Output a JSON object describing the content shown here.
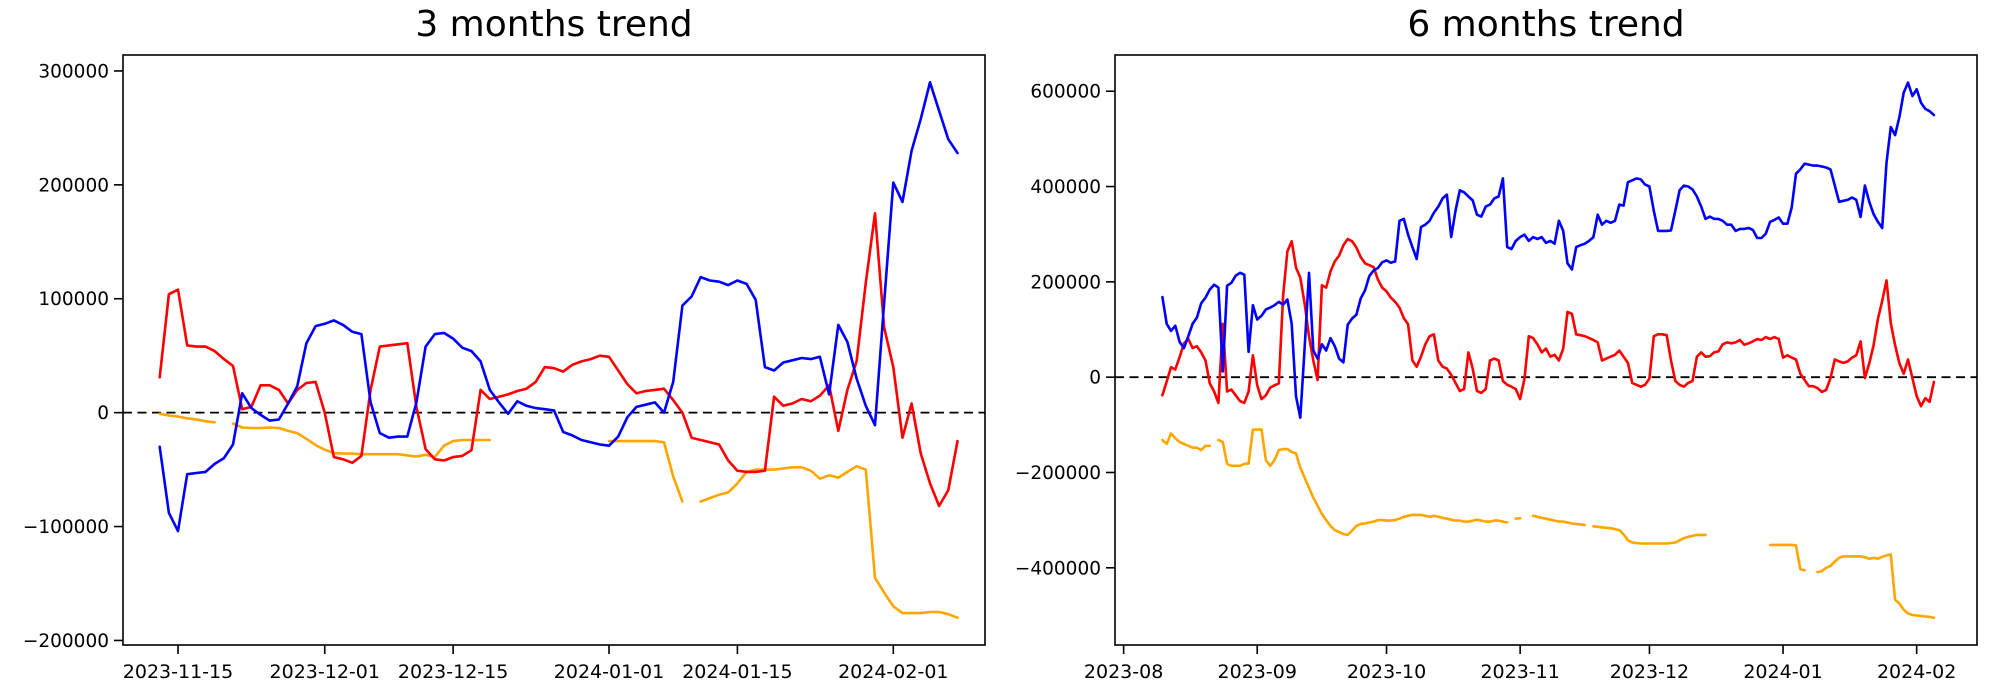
{
  "chart_data": [
    {
      "type": "line",
      "title": "3 months trend",
      "xlabel": "",
      "ylabel": "",
      "grid": false,
      "legend": "none",
      "zero_line_dashed": true,
      "frequency": "daily",
      "start_date": "2023-11-13",
      "xlim": [
        "2023-11-09",
        "2024-02-11"
      ],
      "ylim": [
        -204000,
        314000
      ],
      "yticks": [
        -200000,
        -100000,
        0,
        100000,
        200000,
        300000
      ],
      "xticks": [
        {
          "date": "2023-11-15",
          "label": "2023-11-15"
        },
        {
          "date": "2023-12-01",
          "label": "2023-12-01"
        },
        {
          "date": "2023-12-15",
          "label": "2023-12-15"
        },
        {
          "date": "2024-01-01",
          "label": "2024-01-01"
        },
        {
          "date": "2024-01-15",
          "label": "2024-01-15"
        },
        {
          "date": "2024-02-01",
          "label": "2024-02-01"
        }
      ],
      "series": [
        {
          "name": "orange-line",
          "color": "#ffa500",
          "values": [
            -1000,
            -2500,
            -3500,
            -5000,
            -6000,
            -7500,
            -8500,
            null,
            -9500,
            -13000,
            -13500,
            -13500,
            -13000,
            -13500,
            -16000,
            -18000,
            -23000,
            -28500,
            -32500,
            -35500,
            -36000,
            -36000,
            -36500,
            -36500,
            -36500,
            -36500,
            -36500,
            -37500,
            -38500,
            -37000,
            -39000,
            -29000,
            -25000,
            -24000,
            -24000,
            -24000,
            -24000,
            null,
            null,
            null,
            null,
            null,
            null,
            null,
            null,
            null,
            null,
            null,
            null,
            -25000,
            -25000,
            -25000,
            -25000,
            -25000,
            -25000,
            -26000,
            -56000,
            -78000,
            null,
            -78000,
            -75000,
            -72000,
            -70000,
            -62000,
            -52000,
            -50000,
            -50000,
            -50000,
            -49000,
            -48000,
            -48000,
            -51000,
            -58000,
            -55000,
            -57000,
            -52000,
            -47000,
            -50000,
            -145000,
            -158000,
            -170000,
            -176000,
            -176000,
            -176000,
            -175000,
            -175000,
            -177000,
            -180000
          ]
        },
        {
          "name": "red-line",
          "color": "#ff0000",
          "values": [
            31000,
            104000,
            108000,
            59000,
            58000,
            58000,
            54000,
            47000,
            41000,
            3000,
            5000,
            24000,
            24000,
            20000,
            8000,
            20000,
            26000,
            27000,
            0,
            -39000,
            -41000,
            -44000,
            -38000,
            20000,
            58000,
            59000,
            60000,
            61000,
            5000,
            -32000,
            -41000,
            -42000,
            -39000,
            -38000,
            -33000,
            20000,
            12000,
            14000,
            16000,
            19000,
            21000,
            27000,
            40000,
            39000,
            36000,
            42000,
            45000,
            47000,
            50000,
            49000,
            37000,
            25000,
            17000,
            19000,
            20000,
            21000,
            11000,
            0,
            -22000,
            -24000,
            -26000,
            -28000,
            -42000,
            -51000,
            -52000,
            -52000,
            -51000,
            14000,
            6000,
            8000,
            12000,
            10000,
            15000,
            24000,
            -16000,
            20000,
            45000,
            114000,
            175000,
            75000,
            40000,
            -22000,
            8000,
            -36000,
            -62000,
            -82000,
            -68000,
            -25000
          ]
        },
        {
          "name": "blue-line",
          "color": "#0000ff",
          "values": [
            -30000,
            -88000,
            -104000,
            -54000,
            -53000,
            -52000,
            -45000,
            -40000,
            -28000,
            17000,
            4000,
            -2000,
            -7000,
            -6000,
            8000,
            23000,
            61000,
            76000,
            78000,
            81000,
            77000,
            71000,
            69000,
            9000,
            -18000,
            -22000,
            -21000,
            -21000,
            9000,
            58000,
            69000,
            70000,
            65000,
            57000,
            54000,
            45000,
            20000,
            9000,
            -1000,
            10000,
            6000,
            4000,
            3000,
            2000,
            -17000,
            -20000,
            -24000,
            -26000,
            -28000,
            -29000,
            -21000,
            -4000,
            5000,
            7000,
            9000,
            0,
            27000,
            94000,
            102000,
            119000,
            116000,
            115000,
            112000,
            116000,
            113000,
            99000,
            40000,
            37000,
            44000,
            46000,
            48000,
            47000,
            49000,
            16000,
            77000,
            62000,
            30000,
            6000,
            -11000,
            96000,
            202000,
            185000,
            230000,
            258000,
            290000,
            265000,
            240000,
            228000
          ]
        }
      ]
    },
    {
      "type": "line",
      "title": "6 months trend",
      "xlabel": "",
      "ylabel": "",
      "grid": false,
      "legend": "none",
      "zero_line_dashed": true,
      "frequency": "daily",
      "start_date": "2023-08-10",
      "xlim": [
        "2023-07-30",
        "2024-02-15"
      ],
      "ylim": [
        -562000,
        676000
      ],
      "yticks": [
        -400000,
        -200000,
        0,
        200000,
        400000,
        600000
      ],
      "xticks": [
        {
          "date": "2023-08-01",
          "label": "2023-08"
        },
        {
          "date": "2023-09-01",
          "label": "2023-09"
        },
        {
          "date": "2023-10-01",
          "label": "2023-10"
        },
        {
          "date": "2023-11-01",
          "label": "2023-11"
        },
        {
          "date": "2023-12-01",
          "label": "2023-12"
        },
        {
          "date": "2024-01-01",
          "label": "2024-01"
        },
        {
          "date": "2024-02-01",
          "label": "2024-02"
        }
      ],
      "series": [
        {
          "name": "orange-line",
          "color": "#ffa500",
          "values": [
            -132000,
            -140000,
            -118000,
            -128000,
            -136000,
            -140000,
            -144000,
            -148000,
            -148000,
            -153000,
            -144000,
            -144000,
            null,
            -132000,
            -136000,
            -182000,
            -186000,
            -186000,
            -186000,
            -182000,
            -181000,
            -110000,
            -110000,
            -110000,
            -174000,
            -186000,
            -174000,
            -153000,
            -151000,
            -151000,
            -157000,
            -160000,
            -190000,
            -211000,
            -232000,
            -253000,
            -270000,
            -287000,
            -300000,
            -312000,
            -321000,
            -325000,
            -329000,
            -331000,
            -322000,
            -312000,
            -308000,
            -307000,
            -305000,
            -303000,
            -300000,
            -300000,
            -301000,
            -301000,
            -300000,
            -297000,
            -293000,
            -291000,
            -289000,
            -289000,
            -289000,
            -291000,
            -293000,
            -291000,
            -293000,
            -295000,
            -297000,
            -299000,
            -301000,
            -301000,
            -303000,
            -303000,
            -301000,
            -299000,
            -301000,
            -303000,
            -303000,
            -301000,
            -301000,
            -303000,
            -305000,
            null,
            -297000,
            -296000,
            null,
            null,
            -291000,
            -293000,
            -295000,
            -297000,
            -299000,
            -301000,
            -303000,
            -303000,
            -305000,
            -307000,
            -308000,
            -309000,
            -310000,
            null,
            -313000,
            -314000,
            -315000,
            -316000,
            -317000,
            -319000,
            -321000,
            -330000,
            -342000,
            -347000,
            -348000,
            -349000,
            -349000,
            -349000,
            -349000,
            -349000,
            -349000,
            -349000,
            -348000,
            -347000,
            -342000,
            -338000,
            -335000,
            -333000,
            -331000,
            -331000,
            -331000,
            null,
            null,
            null,
            null,
            null,
            null,
            null,
            null,
            null,
            null,
            null,
            null,
            null,
            null,
            -352000,
            -352000,
            -352000,
            -352000,
            -352000,
            -352000,
            -353000,
            -403000,
            -405000,
            null,
            null,
            -409000,
            -407000,
            -400000,
            -396000,
            -387000,
            -379000,
            -376000,
            -376000,
            -376000,
            -376000,
            -376000,
            -378000,
            -381000,
            -379000,
            -381000,
            -377000,
            -374000,
            -372000,
            -467000,
            -475000,
            -488000,
            -496000,
            -499000,
            -500000,
            -501000,
            -502000,
            -503000,
            -505000
          ]
        },
        {
          "name": "red-line",
          "color": "#ff0000",
          "values": [
            -38000,
            -9000,
            21000,
            16000,
            42000,
            71000,
            80000,
            61000,
            65000,
            52000,
            35000,
            -13000,
            -30000,
            -54000,
            112000,
            -30000,
            -26000,
            -38000,
            -50000,
            -54000,
            -30000,
            46000,
            -17000,
            -46000,
            -38000,
            -22000,
            -17000,
            -13000,
            171000,
            264000,
            285000,
            230000,
            209000,
            155000,
            86000,
            35000,
            -6000,
            193000,
            188000,
            222000,
            243000,
            255000,
            277000,
            290000,
            285000,
            272000,
            252000,
            239000,
            235000,
            231000,
            205000,
            188000,
            180000,
            167000,
            158000,
            146000,
            124000,
            111000,
            35000,
            22000,
            43000,
            69000,
            86000,
            90000,
            35000,
            22000,
            18000,
            5000,
            -12000,
            -29000,
            -25000,
            52000,
            18000,
            -29000,
            -33000,
            -25000,
            35000,
            39000,
            35000,
            -8000,
            -16000,
            -20000,
            -25000,
            -46000,
            -3000,
            86000,
            82000,
            69000,
            52000,
            60000,
            43000,
            47000,
            35000,
            60000,
            137000,
            133000,
            90000,
            88000,
            86000,
            82000,
            78000,
            73000,
            35000,
            39000,
            43000,
            47000,
            56000,
            43000,
            30000,
            -12000,
            -16000,
            -20000,
            -16000,
            -3000,
            86000,
            90000,
            90000,
            88000,
            35000,
            -8000,
            -16000,
            -20000,
            -12000,
            -8000,
            43000,
            52000,
            43000,
            44000,
            52000,
            54000,
            69000,
            73000,
            71000,
            73000,
            78000,
            68000,
            71000,
            75000,
            80000,
            78000,
            84000,
            80000,
            84000,
            80000,
            41000,
            46000,
            41000,
            37000,
            7000,
            -6000,
            -19000,
            -19000,
            -23000,
            -31000,
            -27000,
            -2000,
            37000,
            33000,
            30000,
            33000,
            41000,
            46000,
            75000,
            -2000,
            29000,
            67000,
            122000,
            160000,
            203000,
            113000,
            67000,
            29000,
            7000,
            37000,
            -2000,
            -40000,
            -61000,
            -44000,
            -52000,
            -10000
          ]
        },
        {
          "name": "blue-line",
          "color": "#0000ff",
          "values": [
            168000,
            112000,
            97000,
            108000,
            74000,
            61000,
            86000,
            112000,
            125000,
            155000,
            167000,
            184000,
            194000,
            188000,
            12000,
            192000,
            198000,
            213000,
            219000,
            215000,
            53000,
            151000,
            121000,
            129000,
            142000,
            146000,
            151000,
            158000,
            152000,
            163000,
            112000,
            -40000,
            -85000,
            60000,
            219000,
            56000,
            39000,
            69000,
            56000,
            82000,
            65000,
            39000,
            31000,
            110000,
            123000,
            131000,
            165000,
            182000,
            212000,
            224000,
            229000,
            241000,
            245000,
            240000,
            243000,
            328000,
            332000,
            299000,
            273000,
            248000,
            315000,
            320000,
            328000,
            345000,
            358000,
            375000,
            383000,
            294000,
            349000,
            392000,
            388000,
            379000,
            371000,
            341000,
            337000,
            358000,
            362000,
            375000,
            379000,
            417000,
            273000,
            269000,
            286000,
            294000,
            299000,
            286000,
            294000,
            290000,
            294000,
            282000,
            286000,
            280000,
            328000,
            307000,
            239000,
            226000,
            273000,
            277000,
            280000,
            286000,
            294000,
            341000,
            320000,
            328000,
            324000,
            328000,
            362000,
            360000,
            409000,
            413000,
            417000,
            415000,
            404000,
            400000,
            349000,
            307000,
            307000,
            307000,
            308000,
            349000,
            392000,
            402000,
            400000,
            394000,
            379000,
            358000,
            332000,
            337000,
            332000,
            332000,
            328000,
            320000,
            320000,
            307000,
            311000,
            311000,
            313000,
            309000,
            292000,
            292000,
            301000,
            326000,
            330000,
            335000,
            322000,
            322000,
            356000,
            427000,
            436000,
            448000,
            446000,
            444000,
            444000,
            442000,
            440000,
            436000,
            402000,
            368000,
            370000,
            372000,
            377000,
            372000,
            336000,
            402000,
            368000,
            342000,
            326000,
            313000,
            450000,
            525000,
            508000,
            546000,
            597000,
            618000,
            590000,
            604000,
            576000,
            563000,
            558000,
            550000
          ]
        }
      ]
    }
  ]
}
